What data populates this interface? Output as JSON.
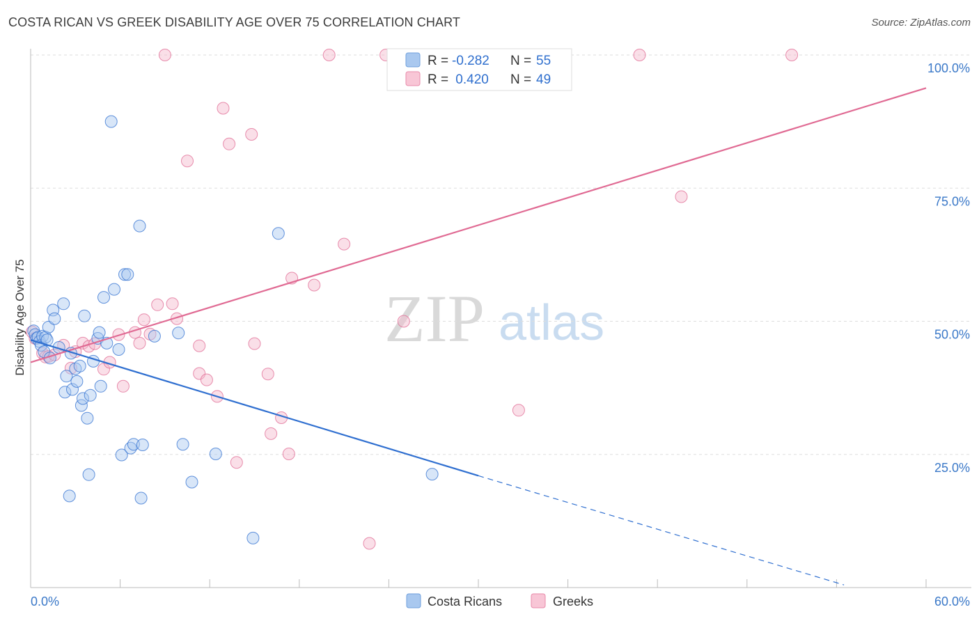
{
  "header": {
    "title": "COSTA RICAN VS GREEK DISABILITY AGE OVER 75 CORRELATION CHART",
    "source": "Source: ZipAtlas.com"
  },
  "watermark": {
    "zip": "ZIP",
    "atlas": "atlas"
  },
  "colors": {
    "blue": "#2f6fd0",
    "blue_fill": "#a9c8ef",
    "pink": "#e06a93",
    "pink_fill": "#f5b8cb",
    "axis_text": "#3a78c8",
    "grid": "#dddddd"
  },
  "legend": {
    "rows": [
      {
        "r_label": "R =",
        "r_value": "-0.282",
        "n_label": "N =",
        "n_value": "55",
        "series": "blue"
      },
      {
        "r_label": "R =",
        "r_value": " 0.420",
        "n_label": "N =",
        "n_value": "49",
        "series": "pink"
      }
    ]
  },
  "bottom_legend": {
    "items": [
      "Costa Ricans",
      "Greeks"
    ]
  },
  "chart_data": {
    "type": "scatter",
    "title": "COSTA RICAN VS GREEK DISABILITY AGE OVER 75 CORRELATION CHART",
    "xlabel": "",
    "ylabel": "Disability Age Over 75",
    "xlim": [
      0,
      60
    ],
    "ylim": [
      0,
      105
    ],
    "x_tick_labels": [
      "0.0%",
      "60.0%"
    ],
    "y_ticks": [
      25,
      50,
      75,
      100
    ],
    "y_tick_labels": [
      "25.0%",
      "50.0%",
      "75.0%",
      "100.0%"
    ],
    "grid": true,
    "legend_position": "top-center",
    "series": [
      {
        "name": "Costa Ricans",
        "color": "blue",
        "r": -0.282,
        "n": 55,
        "trend": {
          "x0": 0,
          "y0": 46.5,
          "x1": 30,
          "y1": 21.0,
          "dashed_to_x": 54.5,
          "dashed_to_y": 0.5
        },
        "points": [
          [
            0.2,
            48.2
          ],
          [
            0.3,
            47.5
          ],
          [
            0.4,
            46.8
          ],
          [
            0.5,
            47.0
          ],
          [
            0.6,
            46.2
          ],
          [
            0.7,
            45.5
          ],
          [
            0.8,
            47.2
          ],
          [
            0.9,
            44.3
          ],
          [
            1.0,
            47.0
          ],
          [
            1.1,
            46.5
          ],
          [
            1.2,
            48.9
          ],
          [
            1.3,
            43.1
          ],
          [
            1.5,
            52.1
          ],
          [
            1.6,
            50.5
          ],
          [
            1.9,
            45.1
          ],
          [
            2.2,
            53.3
          ],
          [
            2.3,
            36.7
          ],
          [
            2.4,
            39.7
          ],
          [
            2.6,
            17.2
          ],
          [
            2.7,
            44.0
          ],
          [
            2.8,
            37.2
          ],
          [
            3.0,
            41.1
          ],
          [
            3.1,
            38.7
          ],
          [
            3.3,
            41.6
          ],
          [
            3.4,
            34.2
          ],
          [
            3.5,
            35.5
          ],
          [
            3.6,
            51.0
          ],
          [
            3.8,
            31.8
          ],
          [
            3.9,
            21.2
          ],
          [
            4.0,
            36.1
          ],
          [
            4.2,
            42.5
          ],
          [
            4.5,
            46.8
          ],
          [
            4.6,
            47.9
          ],
          [
            4.7,
            37.8
          ],
          [
            4.9,
            54.5
          ],
          [
            5.1,
            45.9
          ],
          [
            5.4,
            87.5
          ],
          [
            5.6,
            56.0
          ],
          [
            5.9,
            44.7
          ],
          [
            6.1,
            24.9
          ],
          [
            6.3,
            58.8
          ],
          [
            6.5,
            58.8
          ],
          [
            6.7,
            26.2
          ],
          [
            6.9,
            26.9
          ],
          [
            7.3,
            67.9
          ],
          [
            7.4,
            16.8
          ],
          [
            7.5,
            26.8
          ],
          [
            8.3,
            47.2
          ],
          [
            9.9,
            47.8
          ],
          [
            10.2,
            26.9
          ],
          [
            10.8,
            19.8
          ],
          [
            12.4,
            25.1
          ],
          [
            14.9,
            9.3
          ],
          [
            16.6,
            66.5
          ],
          [
            26.9,
            21.3
          ]
        ]
      },
      {
        "name": "Greeks",
        "color": "pink",
        "r": 0.42,
        "n": 49,
        "trend": {
          "x0": 0,
          "y0": 42.3,
          "x1": 60,
          "y1": 93.8
        },
        "points": [
          [
            0.1,
            48.0
          ],
          [
            0.3,
            46.8
          ],
          [
            0.8,
            44.0
          ],
          [
            1.0,
            43.3
          ],
          [
            1.2,
            43.4
          ],
          [
            1.6,
            43.7
          ],
          [
            2.2,
            45.5
          ],
          [
            2.7,
            41.2
          ],
          [
            3.0,
            44.3
          ],
          [
            3.5,
            45.9
          ],
          [
            3.9,
            45.3
          ],
          [
            4.3,
            45.8
          ],
          [
            4.9,
            41.0
          ],
          [
            5.3,
            42.3
          ],
          [
            5.9,
            47.5
          ],
          [
            6.2,
            37.8
          ],
          [
            7.0,
            47.9
          ],
          [
            7.3,
            45.9
          ],
          [
            7.6,
            50.3
          ],
          [
            8.0,
            47.6
          ],
          [
            8.5,
            53.1
          ],
          [
            9.0,
            100.0
          ],
          [
            9.5,
            53.3
          ],
          [
            9.8,
            50.5
          ],
          [
            10.5,
            80.1
          ],
          [
            11.3,
            45.4
          ],
          [
            11.3,
            40.2
          ],
          [
            11.8,
            39.0
          ],
          [
            12.5,
            35.9
          ],
          [
            12.9,
            90.0
          ],
          [
            13.3,
            83.3
          ],
          [
            13.8,
            23.5
          ],
          [
            14.8,
            85.1
          ],
          [
            15.0,
            45.8
          ],
          [
            15.9,
            40.1
          ],
          [
            16.1,
            28.9
          ],
          [
            16.8,
            31.9
          ],
          [
            17.3,
            25.1
          ],
          [
            17.5,
            58.1
          ],
          [
            19.0,
            56.8
          ],
          [
            20.0,
            100.0
          ],
          [
            21.0,
            64.5
          ],
          [
            22.7,
            8.3
          ],
          [
            23.8,
            100.0
          ],
          [
            25.0,
            50.0
          ],
          [
            32.7,
            33.3
          ],
          [
            40.8,
            100.0
          ],
          [
            43.6,
            73.4
          ],
          [
            51.0,
            100.0
          ]
        ]
      }
    ]
  }
}
